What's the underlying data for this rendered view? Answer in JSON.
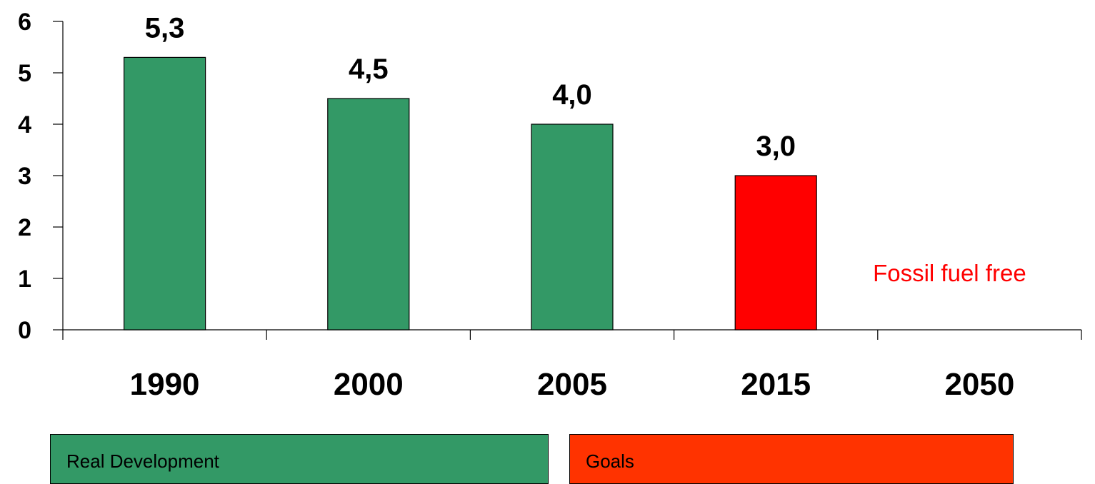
{
  "chart_data": {
    "type": "bar",
    "categories": [
      "1990",
      "2000",
      "2005",
      "2015",
      "2050"
    ],
    "values": [
      5.3,
      4.5,
      4.0,
      3.0,
      null
    ],
    "data_labels": [
      "5,3",
      "4,5",
      "4,0",
      "3,0",
      ""
    ],
    "bar_colors": [
      "#339966",
      "#339966",
      "#339966",
      "#ff0000",
      null
    ],
    "y_ticks": [
      "0",
      "1",
      "2",
      "3",
      "4",
      "5",
      "6"
    ],
    "ylim": [
      0,
      6
    ],
    "grid": false,
    "annotations": [
      {
        "category": "2050",
        "text": "Fossil fuel free",
        "color": "#ff0000"
      }
    ],
    "legend": {
      "placement": "bottom",
      "items": [
        {
          "label": "Real Development",
          "color": "#339966"
        },
        {
          "label": "Goals",
          "color": "#ff3300"
        }
      ]
    }
  },
  "colors": {
    "real": "#339966",
    "goal_bar": "#ff0000",
    "goal_legend": "#ff3300",
    "annotation": "#ff0000"
  }
}
